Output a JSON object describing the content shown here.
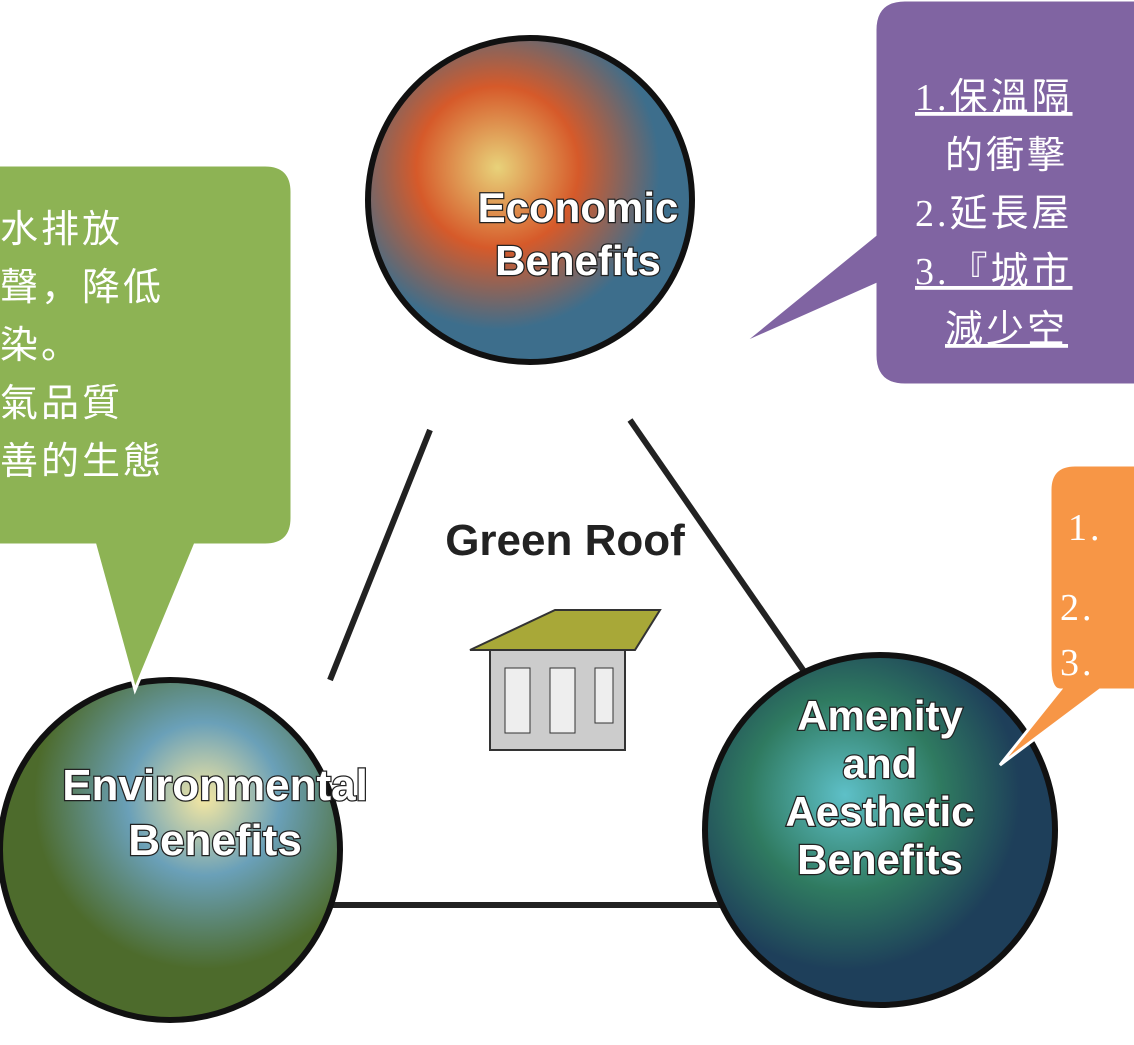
{
  "center": {
    "title": "Green Roof"
  },
  "circles": [
    {
      "lines": [
        "Economic",
        "Benefits"
      ]
    },
    {
      "lines": [
        "Environmental",
        "Benefits"
      ]
    },
    {
      "lines": [
        "Amenity",
        "and",
        "Aesthetic",
        "Benefits"
      ]
    }
  ],
  "callouts": {
    "green": [
      "水排放",
      "聲，降低",
      "染。",
      "氣品質",
      "善的生態"
    ],
    "purple": [
      "1.保溫隔",
      "的衝擊",
      "2.延長屋",
      "3.『城市",
      "減少空"
    ],
    "orange": [
      "1.",
      "2.",
      "3."
    ]
  }
}
